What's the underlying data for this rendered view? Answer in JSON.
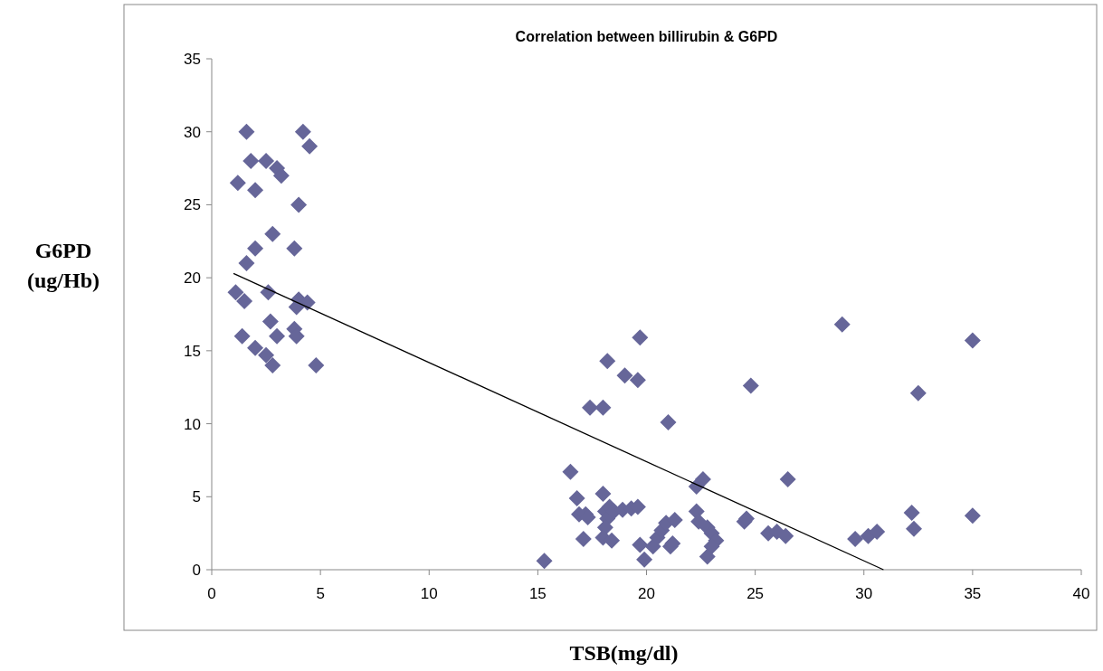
{
  "chart_data": {
    "type": "scatter",
    "title": "Correlation between billirubin & G6PD",
    "xlabel": "TSB(mg/dl)",
    "ylabel": "G6PD (ug/Hb)",
    "xlim": [
      0,
      40
    ],
    "xticks": [
      0,
      5,
      10,
      15,
      20,
      25,
      30,
      35,
      40
    ],
    "ylim": [
      0,
      35
    ],
    "yticks": [
      0,
      5,
      10,
      15,
      20,
      25,
      30,
      35
    ],
    "grid": false,
    "series": [
      {
        "color": "#666699",
        "marker": "diamond",
        "x": [
          1.6,
          4.2,
          4.5,
          1.8,
          2.5,
          3.0,
          3.2,
          1.2,
          2.0,
          4.0,
          2.8,
          2.0,
          3.8,
          1.6,
          1.1,
          1.5,
          2.6,
          4.0,
          3.9,
          4.4,
          3.8,
          3.9,
          2.7,
          1.4,
          3.0,
          2.0,
          2.5,
          2.8,
          4.8,
          15.3,
          16.5,
          16.8,
          16.9,
          17.2,
          17.3,
          17.1,
          17.4,
          18.0,
          18.2,
          18.0,
          18.1,
          18.2,
          18.1,
          18.0,
          18.4,
          18.3,
          18.5,
          18.9,
          19.3,
          19.6,
          19.0,
          19.6,
          19.7,
          19.7,
          19.9,
          20.3,
          20.5,
          20.7,
          20.9,
          21.1,
          21.2,
          21.3,
          21.0,
          22.3,
          22.6,
          22.3,
          22.4,
          22.8,
          23.0,
          23.2,
          23.0,
          22.8,
          24.5,
          24.6,
          24.8,
          25.6,
          26.0,
          26.4,
          26.5,
          29.0,
          29.6,
          30.2,
          30.6,
          32.2,
          32.3,
          32.5,
          35.0,
          35.0
        ],
        "values": [
          30,
          30,
          29,
          28,
          28,
          27.5,
          27,
          26.5,
          26,
          25,
          23,
          22,
          22,
          21,
          19,
          18.4,
          19,
          18.5,
          18,
          18.3,
          16.5,
          16,
          17,
          16,
          16,
          15.2,
          14.7,
          14,
          14,
          0.6,
          6.7,
          4.9,
          3.8,
          3.8,
          3.6,
          2.1,
          11.1,
          11.1,
          14.3,
          5.2,
          4.0,
          3.5,
          2.9,
          2.2,
          2.0,
          4.3,
          4.0,
          4.1,
          4.2,
          4.3,
          13.3,
          13.0,
          15.9,
          1.7,
          0.7,
          1.6,
          2.2,
          2.7,
          3.2,
          1.6,
          1.8,
          3.4,
          10.1,
          5.7,
          6.2,
          4.0,
          3.3,
          2.9,
          2.5,
          2.0,
          1.6,
          0.9,
          3.3,
          3.5,
          12.6,
          2.5,
          2.6,
          2.3,
          6.2,
          16.8,
          2.1,
          2.3,
          2.6,
          3.9,
          2.8,
          12.1,
          15.7,
          3.7
        ]
      },
      {
        "type": "line",
        "color": "#000000",
        "marker": "none",
        "line_style": "solid",
        "x": [
          1.0,
          30.9
        ],
        "values": [
          20.3,
          0
        ]
      }
    ]
  }
}
